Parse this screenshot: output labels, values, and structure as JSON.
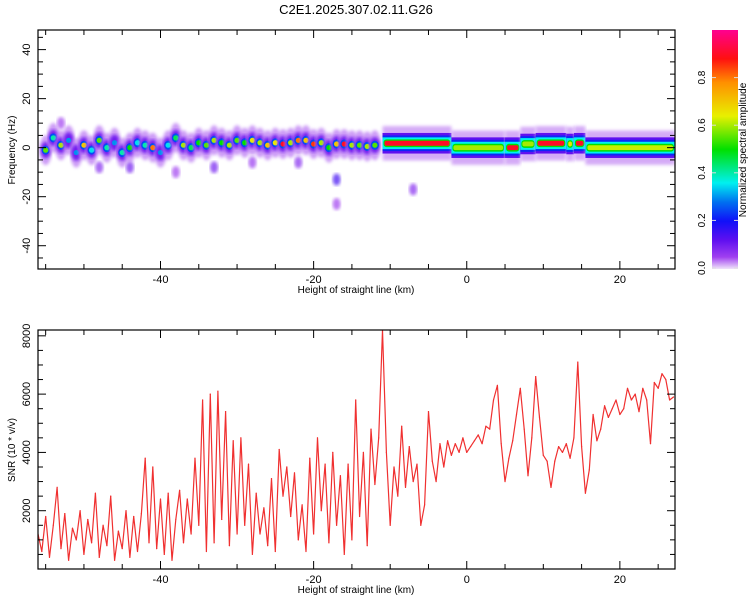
{
  "title": "C2E1.2025.307.02.11.G26",
  "chart_data": [
    {
      "type": "heatmap",
      "name": "spectrogram",
      "xlabel": "Height of straight line (km)",
      "ylabel": "Frequency (Hz)",
      "xlim": [
        -56,
        27.2
      ],
      "ylim": [
        -49.5,
        48
      ],
      "xticks": [
        -40,
        -20,
        0,
        20
      ],
      "yticks": [
        -40,
        -20,
        0,
        20,
        40
      ],
      "colorbar": {
        "label": "Normalized spectral amplitude",
        "range": [
          0,
          1
        ],
        "ticks": [
          "0.0",
          "0.2",
          "0.4",
          "0.6",
          "0.8"
        ],
        "tick_values": [
          0,
          0.2,
          0.4,
          0.6,
          0.8
        ],
        "colormap": [
          [
            0.0,
            "#f0e4fa"
          ],
          [
            0.05,
            "#a040f0"
          ],
          [
            0.12,
            "#6010f0"
          ],
          [
            0.2,
            "#1010f8"
          ],
          [
            0.28,
            "#0070f0"
          ],
          [
            0.36,
            "#00f0f0"
          ],
          [
            0.5,
            "#00e000"
          ],
          [
            0.64,
            "#e8f000"
          ],
          [
            0.78,
            "#ff9000"
          ],
          [
            0.88,
            "#ff1010"
          ],
          [
            1.0,
            "#ff0090"
          ]
        ]
      },
      "blobs_x_freq_amp": [
        [
          -55,
          -1,
          0.55
        ],
        [
          -54,
          4,
          0.4
        ],
        [
          -53,
          1,
          0.6
        ],
        [
          -52,
          3,
          0.3
        ],
        [
          -51,
          -2,
          0.3
        ],
        [
          -50,
          1,
          0.7
        ],
        [
          -49,
          -1,
          0.35
        ],
        [
          -48,
          3,
          0.55
        ],
        [
          -47,
          0,
          0.4
        ],
        [
          -46,
          2,
          0.3
        ],
        [
          -45,
          -2,
          0.4
        ],
        [
          -44,
          0,
          0.5
        ],
        [
          -43,
          2,
          0.35
        ],
        [
          -42,
          1,
          0.4
        ],
        [
          -41,
          0,
          0.8
        ],
        [
          -40,
          -2,
          0.3
        ],
        [
          -39,
          1,
          0.35
        ],
        [
          -38,
          4,
          0.45
        ],
        [
          -37,
          1,
          0.6
        ],
        [
          -36,
          0,
          0.45
        ],
        [
          -35,
          2,
          0.5
        ],
        [
          -34,
          1,
          0.55
        ],
        [
          -33,
          3,
          0.6
        ],
        [
          -32,
          2,
          0.5
        ],
        [
          -31,
          1,
          0.6
        ],
        [
          -30,
          3,
          0.55
        ],
        [
          -29,
          2,
          0.5
        ],
        [
          -28,
          3,
          0.65
        ],
        [
          -27,
          2,
          0.6
        ],
        [
          -26,
          1,
          0.7
        ],
        [
          -25,
          2,
          0.65
        ],
        [
          -24,
          1.5,
          0.9
        ],
        [
          -23,
          2,
          0.6
        ],
        [
          -22,
          3,
          0.8
        ],
        [
          -21,
          3,
          0.7
        ],
        [
          -20,
          1.5,
          0.85
        ],
        [
          -19,
          2,
          0.6
        ],
        [
          -18,
          0,
          0.5
        ],
        [
          -17,
          1.5,
          0.7
        ],
        [
          -16,
          1.5,
          0.9
        ],
        [
          -15,
          1,
          0.6
        ],
        [
          -14,
          1,
          0.55
        ],
        [
          -13,
          0.5,
          0.6
        ],
        [
          -12,
          1,
          0.55
        ]
      ],
      "faint_spots_x_freq_amp": [
        [
          -53,
          10,
          0.05
        ],
        [
          -48,
          -8,
          0.08
        ],
        [
          -44,
          -8,
          0.1
        ],
        [
          -38,
          -10,
          0.05
        ],
        [
          -33,
          -8,
          0.1
        ],
        [
          -17,
          -13,
          0.15
        ],
        [
          -17,
          -23,
          0.05
        ],
        [
          -7,
          -17,
          0.08
        ],
        [
          -22,
          -6,
          0.08
        ],
        [
          -28,
          -6,
          0.06
        ]
      ],
      "band_segments_x0_x1_freq_amp": [
        [
          -11,
          -2,
          1.8,
          0.9
        ],
        [
          -2,
          5,
          0,
          0.6
        ],
        [
          5,
          7,
          0,
          0.9
        ],
        [
          7,
          9,
          1.5,
          0.6
        ],
        [
          9,
          13,
          1.8,
          0.9
        ],
        [
          13,
          14,
          1.5,
          0.65
        ],
        [
          14,
          15.5,
          1.8,
          0.9
        ],
        [
          15.5,
          27.2,
          0,
          0.62
        ]
      ]
    },
    {
      "type": "line",
      "name": "snr",
      "xlabel": "Height of straight line (km)",
      "ylabel": "SNR (10 * v/v)",
      "xlim": [
        -56,
        27.2
      ],
      "ylim": [
        0,
        8200
      ],
      "xticks": [
        -40,
        -20,
        0,
        20
      ],
      "yticks": [
        2000,
        4000,
        6000,
        8000
      ],
      "color": "#f03030",
      "x_start": -56,
      "x_step": 0.5,
      "values": [
        1200,
        600,
        1800,
        400,
        1500,
        2800,
        700,
        1900,
        300,
        1400,
        1000,
        2000,
        500,
        1700,
        900,
        2600,
        400,
        1500,
        800,
        2500,
        300,
        1300,
        700,
        2000,
        400,
        1800,
        600,
        1900,
        3800,
        900,
        3500,
        700,
        2400,
        500,
        2600,
        300,
        1700,
        2700,
        900,
        2400,
        1200,
        3800,
        1500,
        5800,
        600,
        6000,
        900,
        6100,
        1700,
        5400,
        800,
        4400,
        1200,
        4500,
        1500,
        3600,
        500,
        2600,
        1200,
        2100,
        800,
        3100,
        600,
        4100,
        2500,
        3500,
        1800,
        3300,
        1000,
        2200,
        600,
        3800,
        1200,
        4500,
        2000,
        3600,
        900,
        4000,
        1500,
        3200,
        500,
        3600,
        1000,
        5800,
        1800,
        4000,
        800,
        4800,
        2900,
        4500,
        8200,
        4000,
        1500,
        3500,
        2500,
        4900,
        2800,
        4200,
        3000,
        3600,
        1500,
        2200,
        5400,
        3700,
        3000,
        4300,
        3500,
        4400,
        3900,
        4300,
        4000,
        4500,
        4000,
        4200,
        4400,
        4600,
        4300,
        4900,
        4800,
        5800,
        6300,
        4300,
        3000,
        3800,
        4400,
        5300,
        6200,
        4800,
        3200,
        4500,
        6600,
        5200,
        3900,
        3700,
        2800,
        3700,
        4200,
        4000,
        4300,
        3800,
        4500,
        7100,
        4200,
        2600,
        3400,
        5300,
        4400,
        4800,
        5600,
        5200,
        5500,
        5800,
        5300,
        5500,
        6200,
        5800,
        6000,
        5400,
        6200,
        5800,
        4300,
        6400,
        6200,
        6700,
        6500,
        5800,
        5900
      ]
    }
  ]
}
